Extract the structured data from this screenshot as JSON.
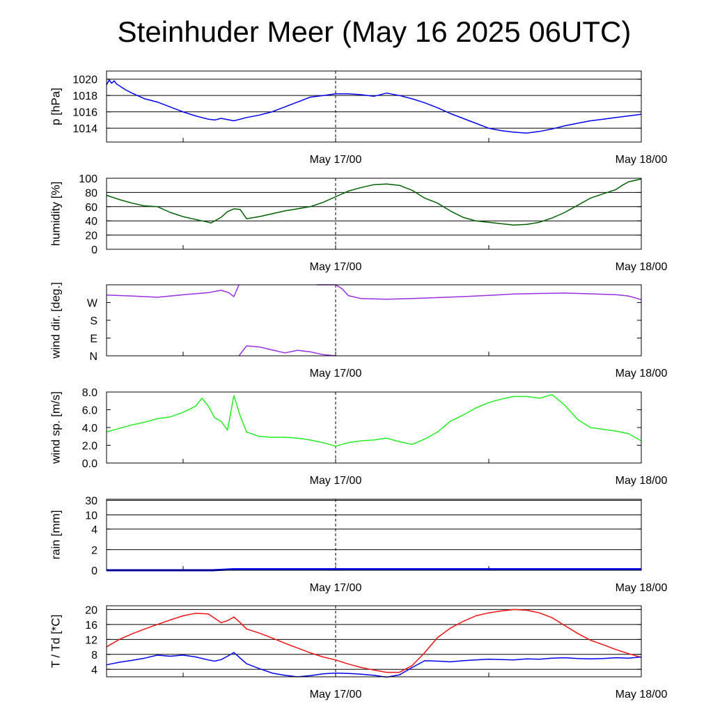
{
  "title": "Steinhuder Meer (May 16 2025 06UTC)",
  "colors": {
    "pressure": "#0000ee",
    "humidity": "#006000",
    "wind_dir": "#9a2ee0",
    "wind_speed": "#22ee22",
    "rain": "#0000ee",
    "temperature": "#ee1111",
    "dewpoint": "#0000ee",
    "frame": "#000000"
  },
  "chart_data": [
    {
      "type": "line",
      "ylabel": "p [hPa]",
      "x_ticks": [
        "May 17/00",
        "May 18/00"
      ],
      "x_range_hours": [
        0,
        42
      ],
      "ylim": [
        1012.3,
        1021
      ],
      "y_ticks": [
        1014,
        1016,
        1018,
        1020
      ],
      "y_tick_labels": [
        "1014",
        "1016",
        "1018",
        "1020"
      ],
      "grid": true,
      "series": [
        {
          "color_key": "pressure",
          "x": [
            0,
            0.2,
            0.4,
            0.6,
            0.8,
            1,
            1.5,
            2,
            3,
            4,
            5,
            6,
            7,
            8,
            8.5,
            9,
            10,
            11,
            12,
            13,
            14,
            15,
            16,
            17,
            18,
            19,
            20,
            21,
            22,
            23,
            24,
            25,
            26,
            27,
            28,
            29,
            30,
            31,
            32,
            33,
            34,
            35,
            36,
            37,
            38,
            39,
            40,
            41,
            42
          ],
          "y": [
            1019.3,
            1019.9,
            1019.5,
            1019.8,
            1019.4,
            1019.2,
            1018.7,
            1018.3,
            1017.6,
            1017.2,
            1016.6,
            1016.0,
            1015.5,
            1015.1,
            1015.0,
            1015.2,
            1014.9,
            1015.3,
            1015.6,
            1016.0,
            1016.6,
            1017.2,
            1017.8,
            1018.0,
            1018.2,
            1018.2,
            1018.1,
            1017.9,
            1018.3,
            1018.0,
            1017.6,
            1017.1,
            1016.5,
            1015.8,
            1015.2,
            1014.6,
            1014.0,
            1013.7,
            1013.5,
            1013.4,
            1013.6,
            1013.9,
            1014.3,
            1014.6,
            1014.9,
            1015.1,
            1015.3,
            1015.5,
            1015.7
          ]
        }
      ]
    },
    {
      "type": "line",
      "ylabel": "humidity [%]",
      "x_ticks": [
        "May 17/00",
        "May 18/00"
      ],
      "x_range_hours": [
        0,
        42
      ],
      "ylim": [
        0,
        100
      ],
      "y_ticks": [
        0,
        20,
        40,
        60,
        80,
        100
      ],
      "y_tick_labels": [
        "0",
        "20",
        "40",
        "60",
        "80",
        "100"
      ],
      "grid": true,
      "series": [
        {
          "color_key": "humidity",
          "x": [
            0,
            1,
            2,
            3,
            4,
            5,
            6,
            7,
            8,
            8.2,
            9,
            9.5,
            10,
            10.5,
            11,
            12,
            13,
            14,
            15,
            16,
            17,
            18,
            19,
            20,
            21,
            22,
            23,
            24,
            25,
            26,
            27,
            28,
            29,
            30,
            31,
            32,
            33,
            34,
            35,
            36,
            37,
            38,
            39,
            40,
            40.5,
            41,
            42
          ],
          "y": [
            76,
            70,
            65,
            61,
            60,
            52,
            46,
            42,
            38,
            37,
            45,
            53,
            57,
            56,
            43,
            46,
            50,
            54,
            57,
            60,
            66,
            74,
            82,
            87,
            91,
            92,
            90,
            83,
            72,
            65,
            54,
            45,
            40,
            38,
            36,
            34,
            35,
            38,
            44,
            52,
            62,
            72,
            78,
            84,
            90,
            95,
            99
          ]
        }
      ]
    },
    {
      "type": "line",
      "ylabel": "wind dir. [deg.]",
      "x_ticks": [
        "May 17/00",
        "May 18/00"
      ],
      "x_range_hours": [
        0,
        42
      ],
      "ylim": [
        0,
        360
      ],
      "y_ticks": [
        0,
        90,
        180,
        270
      ],
      "y_tick_labels": [
        "N",
        "E",
        "S",
        "W"
      ],
      "grid": false,
      "series": [
        {
          "color_key": "wind_dir",
          "x": [
            0,
            2,
            4,
            6,
            8,
            9,
            9.6,
            10,
            10.4
          ],
          "y": [
            308,
            303,
            297,
            309,
            320,
            332,
            320,
            300,
            360
          ]
        },
        {
          "color_key": "wind_dir",
          "x": [
            10.4,
            11,
            12,
            13,
            14,
            15,
            16,
            17,
            18
          ],
          "y": [
            0,
            50,
            45,
            30,
            15,
            28,
            20,
            6,
            0
          ]
        },
        {
          "color_key": "wind_dir",
          "x": [
            16.5,
            17.5,
            18,
            18.5,
            19,
            20,
            22,
            24,
            26,
            28,
            30,
            32,
            34,
            36,
            38,
            40,
            41,
            42
          ],
          "y": [
            360,
            360,
            360,
            340,
            305,
            290,
            287,
            290,
            295,
            300,
            306,
            313,
            316,
            318,
            314,
            310,
            303,
            285
          ]
        }
      ]
    },
    {
      "type": "line",
      "ylabel": "wind sp. [m/s]",
      "x_ticks": [
        "May 17/00",
        "May 18/00"
      ],
      "x_range_hours": [
        0,
        42
      ],
      "ylim": [
        0,
        8
      ],
      "y_ticks": [
        0,
        2,
        4,
        6,
        8
      ],
      "y_tick_labels": [
        "0.0",
        "2.0",
        "4.0",
        "6.0",
        "8.0"
      ],
      "grid": false,
      "series": [
        {
          "color_key": "wind_speed",
          "x": [
            0,
            1,
            2,
            3,
            4,
            5,
            6,
            7,
            7.5,
            8,
            8.5,
            9,
            9.5,
            10,
            10.5,
            11,
            12,
            13,
            14,
            15,
            16,
            17,
            18,
            19,
            20,
            21,
            22,
            23,
            24,
            25,
            26,
            27,
            28,
            29,
            30,
            31,
            32,
            33,
            34,
            35,
            36,
            37,
            38,
            39,
            40,
            41,
            42
          ],
          "y": [
            3.5,
            3.9,
            4.3,
            4.6,
            5.0,
            5.2,
            5.7,
            6.4,
            7.3,
            6.4,
            5.1,
            4.7,
            3.7,
            7.6,
            5.3,
            3.5,
            3.0,
            2.9,
            2.9,
            2.8,
            2.6,
            2.3,
            1.9,
            2.3,
            2.5,
            2.6,
            2.8,
            2.4,
            2.1,
            2.7,
            3.5,
            4.7,
            5.4,
            6.2,
            6.8,
            7.2,
            7.5,
            7.5,
            7.3,
            7.7,
            6.5,
            4.9,
            4.0,
            3.8,
            3.6,
            3.3,
            2.5
          ]
        }
      ]
    },
    {
      "type": "line",
      "ylabel": "rain [mm]",
      "x_ticks": [
        "May 17/00",
        "May 18/00"
      ],
      "x_range_hours": [
        0,
        42
      ],
      "ylim": [
        0,
        30
      ],
      "y_ticks": [
        0,
        2,
        4,
        10,
        30
      ],
      "y_tick_labels": [
        "0",
        "2",
        "4",
        "10",
        "30"
      ],
      "grid": true,
      "series": [
        {
          "color_key": "rain",
          "x": [
            0,
            8.3,
            10,
            42
          ],
          "y": [
            0,
            0,
            0.1,
            0.1
          ]
        }
      ]
    },
    {
      "type": "line",
      "ylabel": "T / Td [*C]",
      "x_ticks": [
        "May 17/00",
        "May 18/00"
      ],
      "x_range_hours": [
        0,
        42
      ],
      "ylim": [
        2,
        21
      ],
      "y_ticks": [
        4,
        8,
        12,
        16,
        20
      ],
      "y_tick_labels": [
        "4",
        "8",
        "12",
        "16",
        "20"
      ],
      "grid": true,
      "series": [
        {
          "color_key": "temperature",
          "x": [
            0,
            1,
            2,
            3,
            4,
            5,
            6,
            7,
            8,
            9,
            9.5,
            10,
            10.5,
            11,
            12,
            13,
            14,
            15,
            16,
            17,
            18,
            19,
            20,
            21,
            22,
            23,
            24,
            25,
            26,
            27,
            28,
            29,
            30,
            31,
            32,
            33,
            34,
            35,
            36,
            37,
            38,
            39,
            40,
            41,
            42
          ],
          "y": [
            10,
            12,
            13.5,
            14.8,
            16,
            17.2,
            18.3,
            19,
            18.8,
            16.5,
            17,
            18,
            16.5,
            14.8,
            13.7,
            12.4,
            11,
            9.7,
            8.4,
            7.3,
            6.5,
            5.4,
            4.5,
            3.8,
            3.2,
            3.2,
            5,
            8.5,
            12.5,
            15,
            16.8,
            18.3,
            19.1,
            19.6,
            20,
            19.8,
            19.1,
            17.8,
            15.7,
            13.6,
            11.8,
            10.6,
            9.3,
            8.2,
            7.2
          ]
        },
        {
          "color_key": "dewpoint",
          "x": [
            0,
            1,
            2,
            3,
            4,
            5,
            6,
            7,
            8,
            8.5,
            9,
            9.5,
            10,
            10.5,
            11,
            12,
            13,
            14,
            15,
            16,
            17,
            18,
            19,
            20,
            21,
            22,
            23,
            24,
            25,
            26,
            27,
            28,
            29,
            30,
            31,
            32,
            33,
            34,
            35,
            36,
            37,
            38,
            39,
            40,
            41,
            42
          ],
          "y": [
            5.2,
            5.9,
            6.4,
            7.0,
            7.8,
            7.5,
            7.8,
            7.3,
            6.5,
            6.2,
            6.6,
            7.5,
            8.5,
            7.0,
            5.5,
            4.2,
            3.0,
            2.4,
            2.0,
            2.3,
            2.8,
            3.0,
            2.9,
            2.7,
            2.4,
            1.9,
            2.5,
            4.5,
            6.3,
            6.2,
            6.0,
            6.3,
            6.5,
            6.7,
            6.6,
            6.5,
            6.8,
            6.7,
            7.0,
            7.1,
            6.9,
            6.8,
            6.9,
            7.1,
            7.0,
            7.3
          ]
        }
      ]
    }
  ]
}
